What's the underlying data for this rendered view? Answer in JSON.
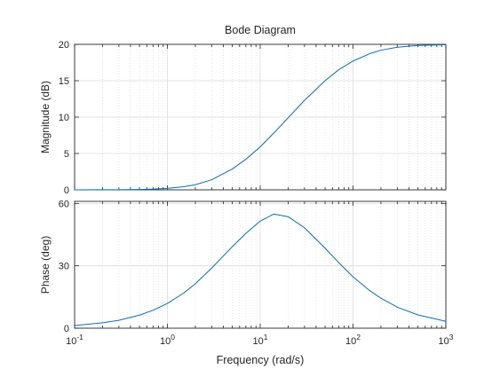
{
  "chart_data": [
    {
      "type": "line",
      "title": "Bode Diagram",
      "xlabel": "",
      "ylabel": "Magnitude (dB)",
      "xscale": "log",
      "xlim": [
        0.1,
        1000
      ],
      "ylim": [
        0,
        20
      ],
      "yticks": [
        0,
        5,
        10,
        15,
        20
      ],
      "grid": true,
      "series": [
        {
          "color": "#0072bd",
          "x": [
            0.1,
            0.2,
            0.3,
            0.5,
            0.7,
            1,
            1.5,
            2,
            3,
            5,
            7,
            10,
            15,
            20,
            30,
            50,
            70,
            100,
            150,
            200,
            300,
            500,
            1000
          ],
          "y": [
            0.0,
            0.01,
            0.02,
            0.05,
            0.1,
            0.2,
            0.43,
            0.7,
            1.38,
            2.86,
            4.2,
            5.9,
            8.2,
            9.9,
            12.3,
            15.0,
            16.5,
            17.7,
            18.7,
            19.2,
            19.6,
            19.85,
            19.96
          ]
        }
      ]
    },
    {
      "type": "line",
      "title": "",
      "xlabel": "Frequency  (rad/s)",
      "ylabel": "Phase (deg)",
      "xscale": "log",
      "xlim": [
        0.1,
        1000
      ],
      "ylim": [
        0,
        61
      ],
      "yticks": [
        0,
        30,
        60
      ],
      "xticks": [
        0.1,
        1,
        10,
        100,
        1000
      ],
      "xtick_labels": [
        {
          "base": "10",
          "exp": "-1"
        },
        {
          "base": "10",
          "exp": "0"
        },
        {
          "base": "10",
          "exp": "1"
        },
        {
          "base": "10",
          "exp": "2"
        },
        {
          "base": "10",
          "exp": "3"
        }
      ],
      "grid": true,
      "series": [
        {
          "color": "#0072bd",
          "x": [
            0.1,
            0.2,
            0.3,
            0.5,
            0.7,
            1,
            1.5,
            2,
            3,
            5,
            7,
            10,
            14,
            20,
            30,
            50,
            70,
            100,
            150,
            200,
            300,
            500,
            1000
          ],
          "y": [
            1.3,
            2.6,
            3.8,
            6.3,
            8.6,
            11.9,
            16.9,
            21.4,
            28.9,
            39.2,
            45.6,
            51.5,
            54.9,
            53.6,
            48.3,
            38.5,
            31.6,
            24.7,
            18.2,
            14.4,
            10.1,
            6.4,
            3.3
          ]
        }
      ]
    }
  ]
}
